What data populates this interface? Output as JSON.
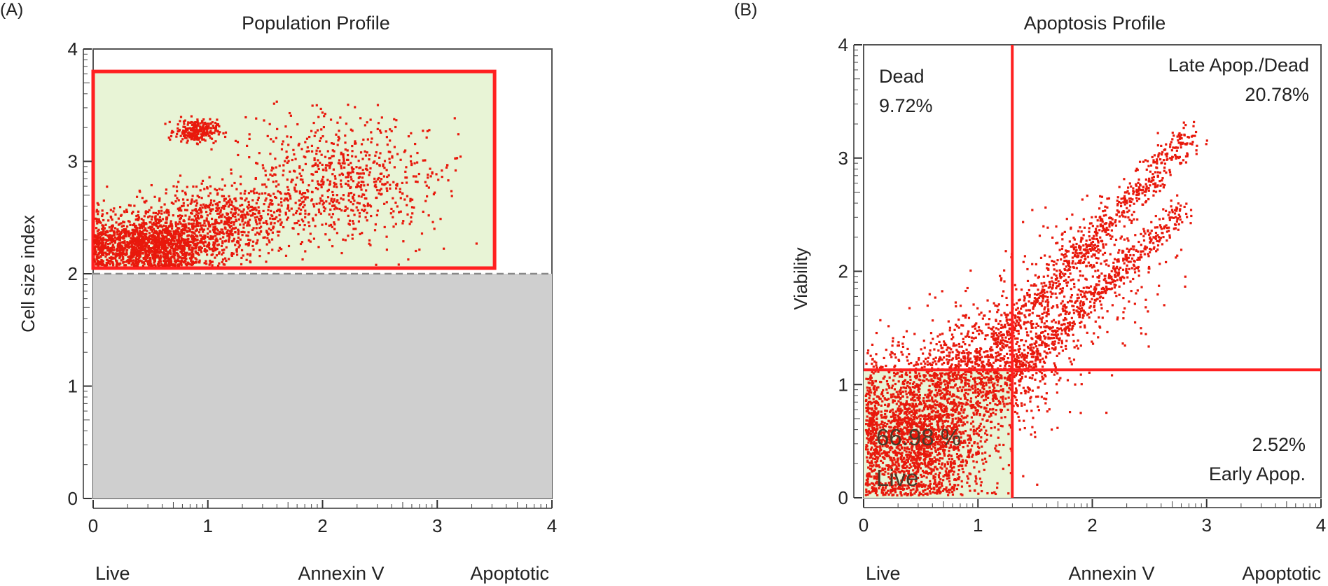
{
  "chart_data": [
    {
      "panel_label": "(A)",
      "type": "scatter",
      "title": "Population Profile",
      "ylabel": "Cell size index",
      "xlabel_parts": [
        "Live",
        "Annexin V",
        "Apoptotic"
      ],
      "xlim": [
        0,
        4
      ],
      "ylim": [
        0,
        4
      ],
      "x_ticks": [
        "0",
        "1",
        "2",
        "3",
        "4"
      ],
      "y_ticks": [
        "0",
        "1",
        "2",
        "3",
        "4"
      ],
      "gate": {
        "x_min": 0,
        "x_max": 3.5,
        "y_min": 2.05,
        "y_max": 3.8
      },
      "debris_region": {
        "y_max": 2.0
      },
      "point_clusters": [
        {
          "cx": 0.5,
          "cy": 2.25,
          "sx": 0.32,
          "sy": 0.12,
          "count": 1600
        },
        {
          "cx": 0.9,
          "cy": 3.27,
          "sx": 0.09,
          "sy": 0.05,
          "count": 260
        },
        {
          "cx": 1.1,
          "cy": 2.5,
          "sx": 0.4,
          "sy": 0.15,
          "count": 700
        },
        {
          "cx": 2.2,
          "cy": 2.85,
          "sx": 0.42,
          "sy": 0.28,
          "count": 700
        }
      ],
      "colors": {
        "points": "#e8190c",
        "gate_stroke": "#ff2020",
        "gate_fill": "#e8f4d6",
        "debris_fill": "#cfcfcf"
      }
    },
    {
      "panel_label": "(B)",
      "type": "scatter",
      "title": "Apoptosis Profile",
      "ylabel": "Viability",
      "xlabel_parts": [
        "Live",
        "Annexin V",
        "Apoptotic"
      ],
      "xlim": [
        0,
        4
      ],
      "ylim": [
        0,
        4
      ],
      "x_ticks": [
        "0",
        "1",
        "2",
        "3",
        "4"
      ],
      "y_ticks": [
        "0",
        "1",
        "2",
        "3",
        "4"
      ],
      "thresholds": {
        "x": 1.3,
        "y": 1.13
      },
      "quadrants": [
        {
          "name": "Dead",
          "value": "9.72%",
          "position": "top-left"
        },
        {
          "name": "Late Apop./Dead",
          "value": "20.78%",
          "position": "top-right"
        },
        {
          "name": "Live",
          "value": "66.98 %",
          "position": "bottom-left"
        },
        {
          "name": "Early Apop.",
          "value": "2.52%",
          "position": "bottom-right"
        }
      ],
      "point_clusters": [
        {
          "cx": 0.45,
          "cy": 0.55,
          "sx": 0.3,
          "sy": 0.32,
          "count": 2200
        },
        {
          "cx": 1.0,
          "cy": 1.1,
          "sx": 0.3,
          "sy": 0.22,
          "count": 700
        }
      ],
      "point_bands": [
        {
          "x_from": 1.2,
          "y_from": 1.4,
          "x_to": 2.85,
          "y_to": 3.2,
          "spread": 0.07,
          "count": 650
        },
        {
          "x_from": 1.35,
          "y_from": 1.15,
          "x_to": 2.8,
          "y_to": 2.55,
          "spread": 0.06,
          "count": 500
        },
        {
          "x_from": 0.8,
          "y_from": 0.8,
          "x_to": 2.2,
          "y_to": 2.2,
          "spread": 0.3,
          "count": 700
        }
      ],
      "colors": {
        "points": "#e8190c",
        "threshold": "#ff2020",
        "live_fill": "#e8f4d6"
      }
    }
  ]
}
